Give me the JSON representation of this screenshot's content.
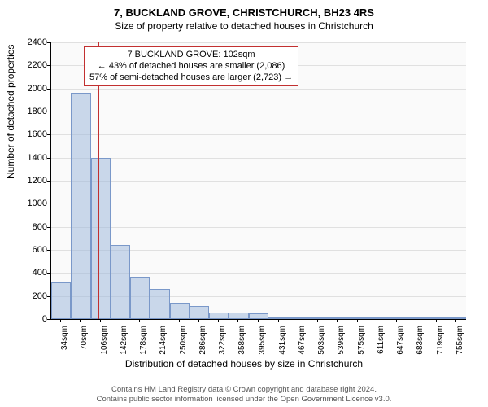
{
  "titles": {
    "line1": "7, BUCKLAND GROVE, CHRISTCHURCH, BH23 4RS",
    "line2": "Size of property relative to detached houses in Christchurch"
  },
  "chart": {
    "type": "histogram",
    "ylabel": "Number of detached properties",
    "xlabel": "Distribution of detached houses by size in Christchurch",
    "ylim": [
      0,
      2400
    ],
    "ytick_step": 200,
    "background_color": "#fafafa",
    "grid_color": "#e0e0e0",
    "bar_fill": "rgba(160,185,220,0.55)",
    "bar_border": "#7a98c9",
    "marker_color": "#c23030",
    "marker_x_value": 102,
    "x_labels": [
      "34sqm",
      "70sqm",
      "106sqm",
      "142sqm",
      "178sqm",
      "214sqm",
      "250sqm",
      "286sqm",
      "322sqm",
      "358sqm",
      "395sqm",
      "431sqm",
      "467sqm",
      "503sqm",
      "539sqm",
      "575sqm",
      "611sqm",
      "647sqm",
      "683sqm",
      "719sqm",
      "755sqm"
    ],
    "x_values": [
      34,
      70,
      106,
      142,
      178,
      214,
      250,
      286,
      322,
      358,
      395,
      431,
      467,
      503,
      539,
      575,
      611,
      647,
      683,
      719,
      755
    ],
    "bars": [
      {
        "x": 34,
        "value": 320
      },
      {
        "x": 70,
        "value": 1960
      },
      {
        "x": 106,
        "value": 1400
      },
      {
        "x": 142,
        "value": 640
      },
      {
        "x": 178,
        "value": 370
      },
      {
        "x": 214,
        "value": 260
      },
      {
        "x": 250,
        "value": 140
      },
      {
        "x": 286,
        "value": 110
      },
      {
        "x": 322,
        "value": 60
      },
      {
        "x": 358,
        "value": 60
      },
      {
        "x": 395,
        "value": 50
      },
      {
        "x": 431,
        "value": 15
      },
      {
        "x": 467,
        "value": 10
      },
      {
        "x": 503,
        "value": 5
      },
      {
        "x": 539,
        "value": 5
      },
      {
        "x": 575,
        "value": 5
      },
      {
        "x": 611,
        "value": 5
      },
      {
        "x": 647,
        "value": 3
      },
      {
        "x": 683,
        "value": 3
      },
      {
        "x": 719,
        "value": 3
      },
      {
        "x": 755,
        "value": 3
      }
    ],
    "x_range": [
      16,
      773
    ]
  },
  "annotation": {
    "line1": "7 BUCKLAND GROVE: 102sqm",
    "line2": "← 43% of detached houses are smaller (2,086)",
    "line3": "57% of semi-detached houses are larger (2,723) →",
    "border_color": "#c23030"
  },
  "footer": {
    "line1": "Contains HM Land Registry data © Crown copyright and database right 2024.",
    "line2": "Contains public sector information licensed under the Open Government Licence v3.0."
  }
}
